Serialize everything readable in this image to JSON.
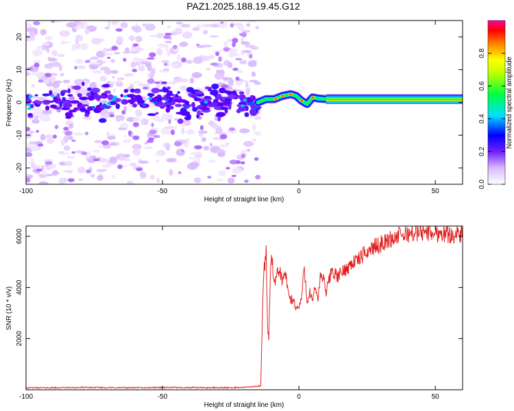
{
  "figure_title": "PAZ1.2025.188.19.45.G12",
  "chart_data": [
    {
      "type": "heatmap",
      "xlabel": "Height of straight line (km)",
      "ylabel": "Frequency (Hz)",
      "xlim": [
        -100,
        60
      ],
      "ylim": [
        -25,
        25
      ],
      "xticks": [
        -100,
        -50,
        0,
        50
      ],
      "xtick_labels": [
        "-100",
        "-50",
        "0",
        "50"
      ],
      "yticks": [
        -20,
        -10,
        0,
        10,
        20
      ],
      "ytick_labels": [
        "-20",
        "-10",
        "0",
        "10",
        "20"
      ],
      "colorbar": {
        "label": "Normalized spectral amplitude",
        "range": [
          0,
          1
        ],
        "ticks": [
          0,
          0.2,
          0.4,
          0.6,
          0.8
        ],
        "tick_labels": [
          "0.0",
          "0.2",
          "0.4",
          "0.6",
          "0.8"
        ],
        "colors": [
          "#ffffff",
          "#b060ff",
          "#5000ff",
          "#0000ff",
          "#00e0ff",
          "#00ff40",
          "#ffff00",
          "#ff8000",
          "#ff0000",
          "#ff00a0"
        ]
      },
      "features": {
        "noise_region_x": [
          -100,
          -15
        ],
        "ridge_path": [
          [
            -15,
            0
          ],
          [
            -12,
            1
          ],
          [
            -9,
            1
          ],
          [
            -6,
            2
          ],
          [
            -3,
            2.5
          ],
          [
            -1,
            2
          ],
          [
            1,
            0.5
          ],
          [
            3,
            -0.5
          ],
          [
            5,
            1.5
          ],
          [
            7,
            1.2
          ],
          [
            10,
            1
          ]
        ],
        "steady_band": {
          "x_start": 10,
          "x_end": 60,
          "center_hz": 1
        }
      }
    },
    {
      "type": "line",
      "xlabel": "Height of straight line (km)",
      "ylabel": "SNR (10 * v/v)",
      "xlim": [
        -100,
        60
      ],
      "ylim": [
        0,
        6400
      ],
      "xticks": [
        -100,
        -50,
        0,
        50
      ],
      "xtick_labels": [
        "-100",
        "-50",
        "0",
        "50"
      ],
      "yticks": [
        2000,
        4000,
        6000
      ],
      "ytick_labels": [
        "2000",
        "4000",
        "6000"
      ],
      "series": [
        {
          "color": "#e02020",
          "x": [
            -100,
            -90,
            -80,
            -70,
            -60,
            -50,
            -40,
            -30,
            -20,
            -14,
            -13,
            -12,
            -11.5,
            -11,
            -10.5,
            -10,
            -9,
            -8,
            -7,
            -6,
            -5,
            -4,
            -3,
            -2,
            -1,
            0,
            1,
            2,
            3,
            4,
            5,
            6,
            7,
            8,
            9,
            10,
            12,
            14,
            16,
            18,
            20,
            22,
            24,
            26,
            28,
            30,
            32,
            34,
            36,
            38,
            40,
            42,
            44,
            46,
            48,
            50,
            52,
            54,
            56,
            58,
            60
          ],
          "y": [
            80,
            80,
            90,
            85,
            80,
            90,
            85,
            80,
            90,
            150,
            4400,
            5500,
            2400,
            2000,
            4500,
            5300,
            4000,
            4500,
            4700,
            4200,
            4600,
            3800,
            3500,
            3500,
            3200,
            3200,
            3600,
            4800,
            3500,
            3800,
            3400,
            4000,
            3600,
            4500,
            4300,
            3800,
            4700,
            4400,
            4600,
            4800,
            5000,
            5100,
            5300,
            5500,
            5600,
            5700,
            5800,
            5900,
            6000,
            6050,
            6100,
            6150,
            6100,
            6200,
            6150,
            6100,
            6150,
            6100,
            6050,
            6100,
            6000
          ]
        }
      ]
    }
  ]
}
